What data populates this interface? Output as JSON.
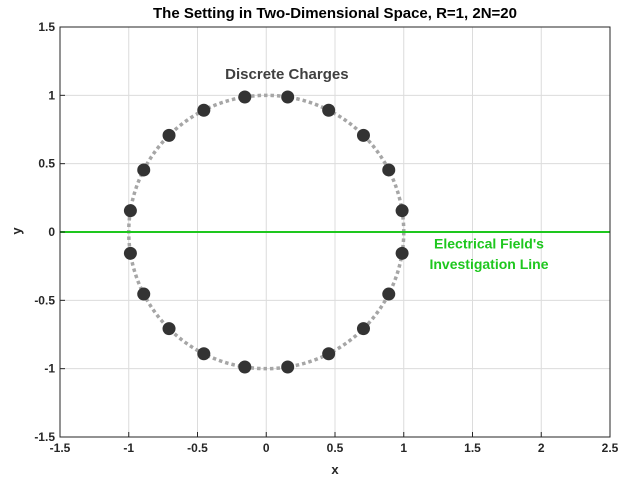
{
  "chart_data": {
    "type": "scatter",
    "title": "The Setting in Two-Dimensional Space, R=1, 2N=20",
    "xlabel": "x",
    "ylabel": "y",
    "xlim": [
      -1.5,
      2.5
    ],
    "ylim": [
      -1.5,
      1.5
    ],
    "xticks": [
      -1.5,
      -1,
      -0.5,
      0,
      0.5,
      1,
      1.5,
      2,
      2.5
    ],
    "yticks": [
      -1.5,
      -1,
      -0.5,
      0,
      0.5,
      1,
      1.5
    ],
    "xtick_labels": [
      "-1.5",
      "-1",
      "-0.5",
      "0",
      "0.5",
      "1",
      "1.5",
      "2",
      "2.5"
    ],
    "ytick_labels": [
      "-1.5",
      "-1",
      "-0.5",
      "0",
      "0.5",
      "1",
      "1.5"
    ],
    "grid": true,
    "circle": {
      "center": [
        0,
        0
      ],
      "radius": 1,
      "style": "dotted",
      "color": "#a6a6a6"
    },
    "investigation_line": {
      "y": 0,
      "x_range": [
        -1.5,
        2.5
      ],
      "color": "#1ec71e"
    },
    "series": [
      {
        "name": "Discrete Charges",
        "color": "#333333",
        "points": [
          [
            0.988,
            0.156
          ],
          [
            0.891,
            0.454
          ],
          [
            0.707,
            0.707
          ],
          [
            0.454,
            0.891
          ],
          [
            0.156,
            0.988
          ],
          [
            -0.156,
            0.988
          ],
          [
            -0.454,
            0.891
          ],
          [
            -0.707,
            0.707
          ],
          [
            -0.891,
            0.454
          ],
          [
            -0.988,
            0.156
          ],
          [
            -0.988,
            -0.156
          ],
          [
            -0.891,
            -0.454
          ],
          [
            -0.707,
            -0.707
          ],
          [
            -0.454,
            -0.891
          ],
          [
            -0.156,
            -0.988
          ],
          [
            0.156,
            -0.988
          ],
          [
            0.454,
            -0.891
          ],
          [
            0.707,
            -0.707
          ],
          [
            0.891,
            -0.454
          ],
          [
            0.988,
            -0.156
          ]
        ]
      }
    ],
    "annotations": [
      {
        "text": "Discrete Charges",
        "x": 0.15,
        "y": 1.12,
        "color": "#404040"
      },
      {
        "text": "Electrical Field's",
        "x": 1.62,
        "y": -0.12,
        "color": "#1ec71e"
      },
      {
        "text": "Investigation Line",
        "x": 1.62,
        "y": -0.27,
        "color": "#1ec71e"
      }
    ]
  }
}
